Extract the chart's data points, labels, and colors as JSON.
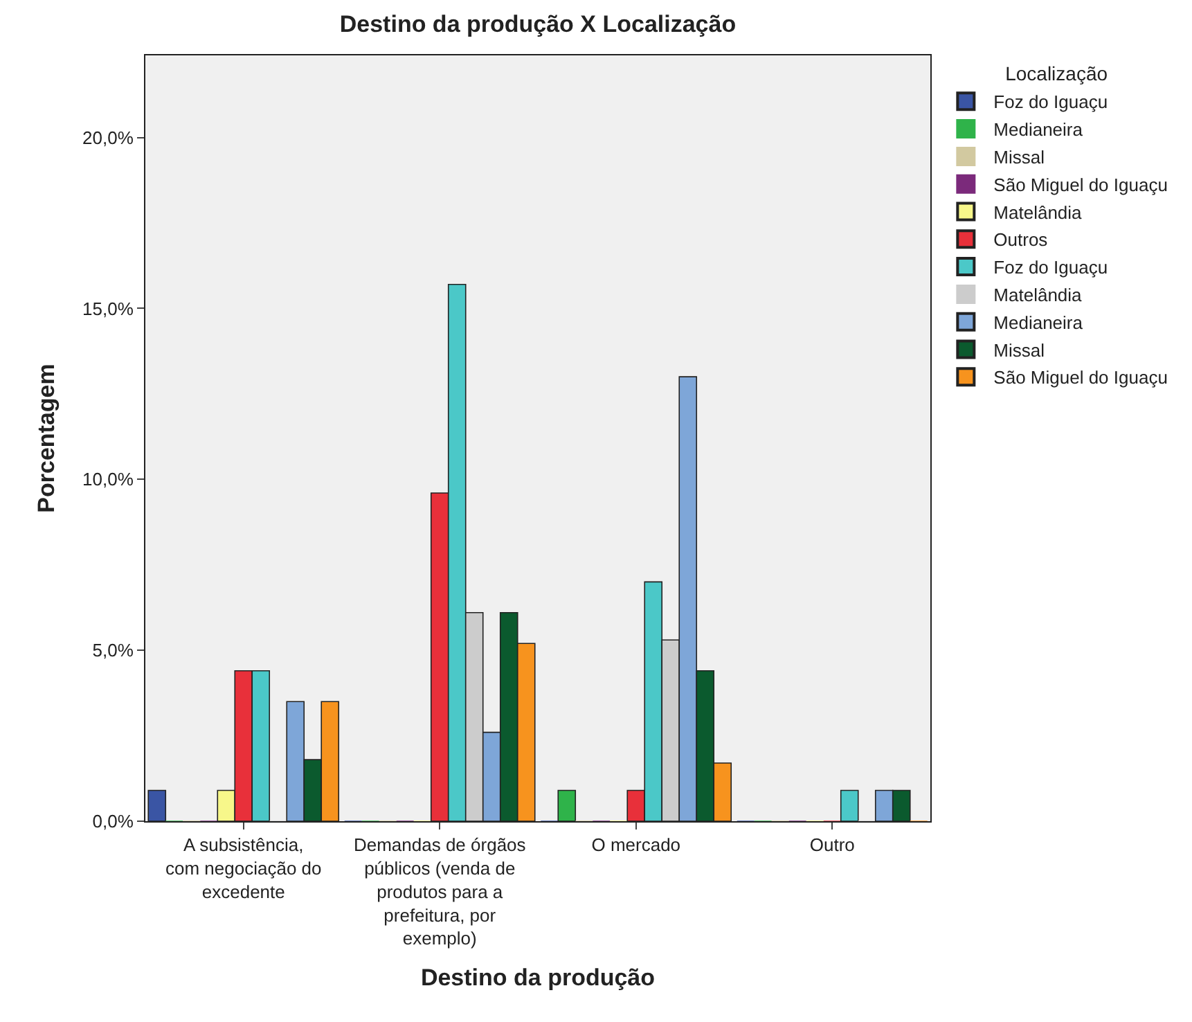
{
  "chart_data": {
    "type": "bar",
    "title": "Destino da produção X Localização",
    "xlabel": "Destino da produção",
    "ylabel": "Porcentagem",
    "legend_title": "Localização",
    "categories": [
      "A subsistência, com negociação do excedente",
      "Demandas de órgãos públicos (venda de produtos para a prefeitura, por exemplo)",
      "O mercado",
      "Outro"
    ],
    "series": [
      {
        "name": "Foz do Iguaçu",
        "color": "#3a55a4",
        "values": [
          0.9,
          0,
          0,
          0
        ]
      },
      {
        "name": "Medianeira",
        "color": "#2fb34a",
        "values": [
          0,
          0,
          0.9,
          0
        ]
      },
      {
        "name": "Missal",
        "color": "#d2c9a0",
        "values": [
          0,
          0,
          0,
          0
        ]
      },
      {
        "name": "São Miguel do Iguaçu",
        "color": "#7b2a7b",
        "values": [
          0,
          0,
          0,
          0
        ]
      },
      {
        "name": "Matelândia",
        "color": "#f7f78a",
        "values": [
          0.9,
          0,
          0,
          0
        ]
      },
      {
        "name": "Outros",
        "color": "#e8303a",
        "values": [
          4.4,
          9.6,
          0.9,
          0
        ]
      },
      {
        "name": "Foz do Iguaçu",
        "color": "#4bc8c8",
        "values": [
          4.4,
          15.7,
          7.0,
          0.9
        ]
      },
      {
        "name": "Matelândia",
        "color": "#cccccc",
        "values": [
          0,
          6.1,
          5.3,
          0
        ]
      },
      {
        "name": "Medianeira",
        "color": "#7ea6d8",
        "values": [
          3.5,
          2.6,
          13.0,
          0.9
        ]
      },
      {
        "name": "Missal",
        "color": "#0b5a2e",
        "values": [
          1.8,
          6.1,
          4.4,
          0.9
        ]
      },
      {
        "name": "São Miguel do Iguaçu",
        "color": "#f7931e",
        "values": [
          3.5,
          5.2,
          1.7,
          0
        ]
      }
    ],
    "ylim": [
      0,
      22.4
    ],
    "yticks": [
      {
        "value": 0,
        "label": "0,0%"
      },
      {
        "value": 5,
        "label": "5,0%"
      },
      {
        "value": 10,
        "label": "10,0%"
      },
      {
        "value": 15,
        "label": "15,0%"
      },
      {
        "value": 20,
        "label": "20,0%"
      }
    ],
    "grid": false,
    "legend": "right"
  }
}
